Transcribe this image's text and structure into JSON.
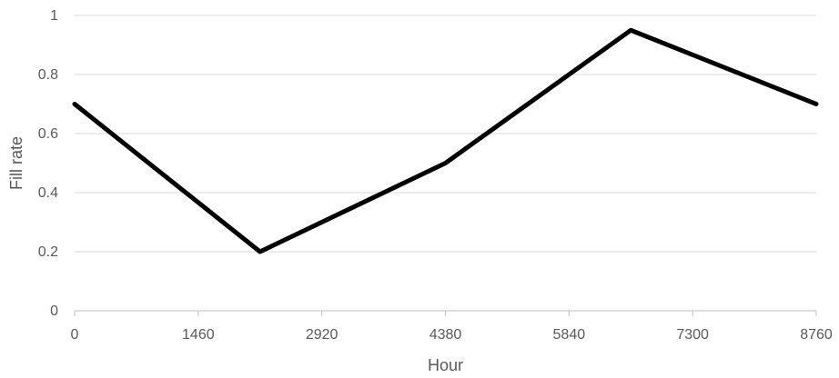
{
  "chart_data": {
    "type": "line",
    "title": "",
    "xlabel": "Hour",
    "ylabel": "Fill rate",
    "x_ticks": [
      0,
      1460,
      2920,
      4380,
      5840,
      7300,
      8760
    ],
    "y_ticks": [
      0,
      0.2,
      0.4,
      0.6,
      0.8,
      1
    ],
    "x_tick_labels": [
      "0",
      "1460",
      "2920",
      "4380",
      "5840",
      "7300",
      "8760"
    ],
    "y_tick_labels": [
      "0",
      "0.2",
      "0.4",
      "0.6",
      "0.8",
      "1"
    ],
    "xlim": [
      0,
      8760
    ],
    "ylim": [
      0,
      1
    ],
    "grid": "horizontal",
    "legend": "none",
    "series": [
      {
        "color": "#000000",
        "points": [
          {
            "x": 0,
            "y": 0.7
          },
          {
            "x": 2190,
            "y": 0.2
          },
          {
            "x": 4380,
            "y": 0.5
          },
          {
            "x": 6570,
            "y": 0.95
          },
          {
            "x": 8760,
            "y": 0.7
          }
        ]
      }
    ],
    "gridline_color": "#d9d9d9",
    "axis_color": "#bfbfbf"
  }
}
